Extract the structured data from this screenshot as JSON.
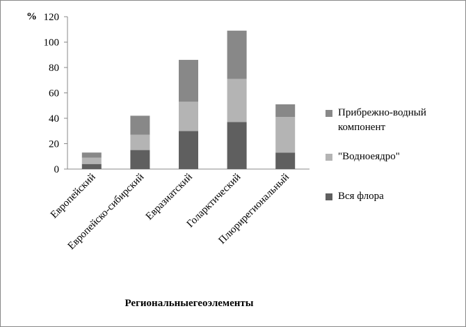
{
  "chart_data": {
    "type": "stacked_bar",
    "y_label": "%",
    "x_label": "Региональныегеоэлементы",
    "categories": [
      "Европейский",
      "Европейско-сибирский",
      "Евразиатский",
      "Голарктический",
      "Плюрирегиональный"
    ],
    "series": [
      {
        "name": "Вся флора",
        "color": "#5f5f5f",
        "values": [
          4,
          15,
          30,
          37,
          13
        ]
      },
      {
        "name": "\"Водноеядро\"",
        "color": "#b4b4b4",
        "values": [
          5,
          12,
          23,
          34,
          28
        ]
      },
      {
        "name": "Прибрежно-водный компонент",
        "color": "#888888",
        "values": [
          4,
          15,
          33,
          38,
          10
        ]
      }
    ],
    "ylim": [
      0,
      120
    ],
    "yticks": [
      0,
      20,
      40,
      60,
      80,
      100,
      120
    ],
    "grid": false
  }
}
